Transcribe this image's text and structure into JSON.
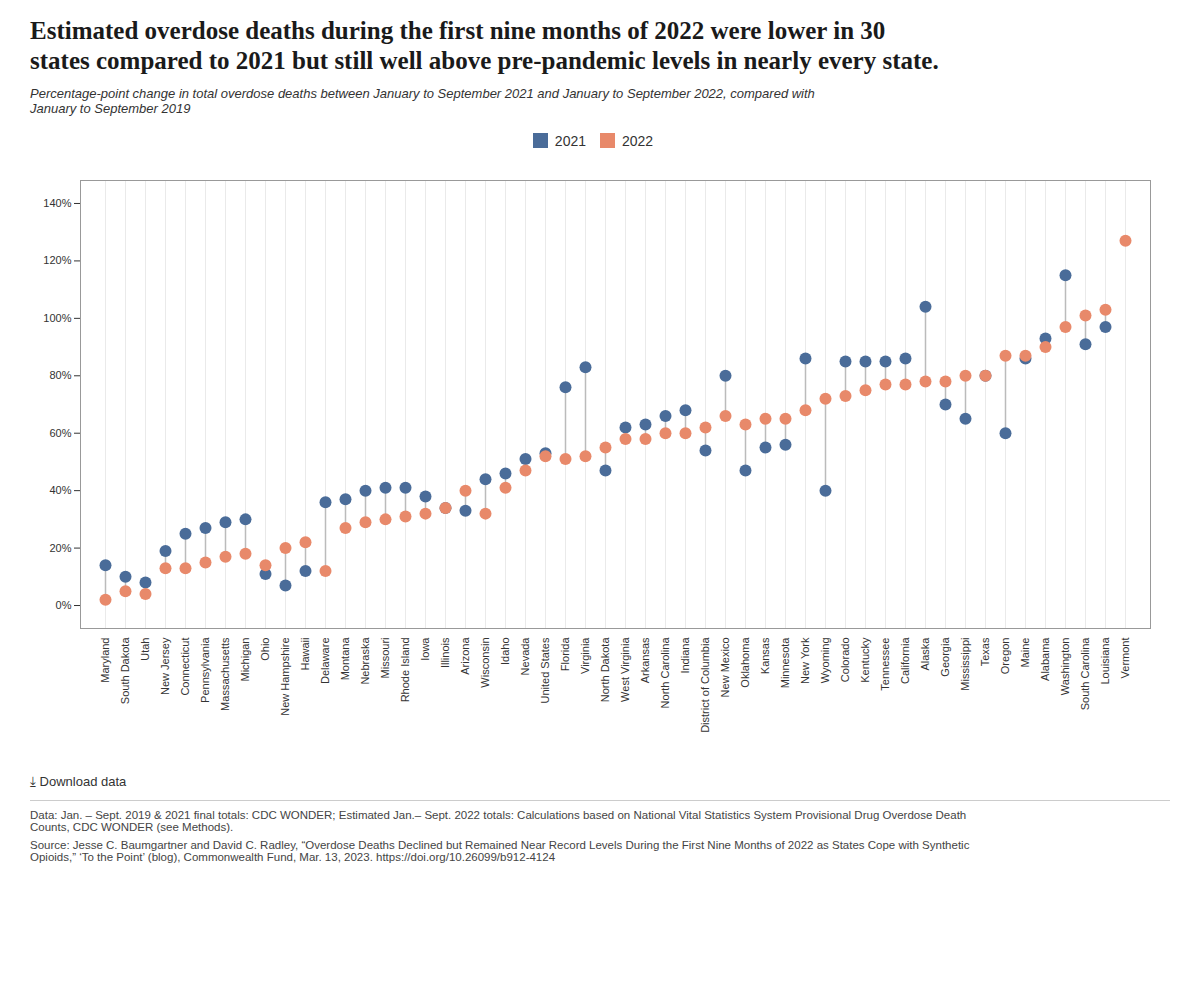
{
  "chart_data": {
    "type": "dot",
    "title": "Estimated overdose deaths during the first nine months of 2022 were lower in 30\nstates compared to 2021 but still well above pre-pandemic levels in nearly every state.",
    "subtitle": "Percentage-point change in total overdose deaths between January to September 2021 and January to September 2022, compared with\nJanuary to September 2019",
    "categories": [
      "Maryland",
      "South Dakota",
      "Utah",
      "New Jersey",
      "Connecticut",
      "Pennsylvania",
      "Massachusetts",
      "Michigan",
      "Ohio",
      "New Hampshire",
      "Hawaii",
      "Delaware",
      "Montana",
      "Nebraska",
      "Missouri",
      "Rhode Island",
      "Iowa",
      "Illinois",
      "Arizona",
      "Wisconsin",
      "Idaho",
      "Nevada",
      "United States",
      "Florida",
      "Virginia",
      "North Dakota",
      "West Virginia",
      "Arkansas",
      "North Carolina",
      "Indiana",
      "District of Columbia",
      "New Mexico",
      "Oklahoma",
      "Kansas",
      "Minnesota",
      "New York",
      "Wyoming",
      "Colorado",
      "Kentucky",
      "Tennessee",
      "California",
      "Alaska",
      "Georgia",
      "Mississippi",
      "Texas",
      "Oregon",
      "Maine",
      "Alabama",
      "Washington",
      "South Carolina",
      "Louisiana",
      "Vermont"
    ],
    "series": [
      {
        "name": "2021",
        "color": "#4a6c99",
        "values": [
          14,
          10,
          8,
          19,
          25,
          27,
          29,
          30,
          11,
          7,
          12,
          36,
          37,
          40,
          41,
          41,
          38,
          34,
          33,
          44,
          46,
          51,
          53,
          76,
          83,
          47,
          62,
          63,
          66,
          68,
          54,
          80,
          47,
          55,
          56,
          86,
          40,
          85,
          85,
          85,
          86,
          104,
          70,
          65,
          80,
          60,
          86,
          93,
          115,
          91,
          97,
          null
        ]
      },
      {
        "name": "2022",
        "color": "#e8896a",
        "values": [
          2,
          5,
          4,
          13,
          13,
          15,
          17,
          18,
          14,
          20,
          22,
          12,
          27,
          29,
          30,
          31,
          32,
          34,
          40,
          32,
          41,
          47,
          52,
          51,
          52,
          55,
          58,
          58,
          60,
          60,
          62,
          66,
          63,
          65,
          65,
          68,
          72,
          73,
          75,
          77,
          77,
          78,
          78,
          80,
          80,
          87,
          87,
          90,
          97,
          101,
          103,
          127
        ]
      }
    ],
    "ylim": [
      -8,
      148
    ],
    "yticks": [
      {
        "value": 0,
        "label": "0%"
      },
      {
        "value": 20,
        "label": "20%"
      },
      {
        "value": 40,
        "label": "40%"
      },
      {
        "value": 60,
        "label": "60%"
      },
      {
        "value": 80,
        "label": "80%"
      },
      {
        "value": 100,
        "label": "100%"
      },
      {
        "value": 120,
        "label": "120%"
      },
      {
        "value": 140,
        "label": "140%"
      }
    ],
    "grid": "x",
    "legend": "top",
    "annotations": [
      "⤓ Download data",
      "Data: Jan. – Sept. 2019 & 2021 final totals: CDC WONDER; Estimated Jan.– Sept. 2022 totals: Calculations based on National Vital Statistics System Provisional Drug Overdose Death\nCounts, CDC WONDER (see Methods).",
      "Source: Jesse C. Baumgartner and David C. Radley, “Overdose Deaths Declined but Remained Near Record Levels During the First Nine Months of 2022 as States Cope with Synthetic\nOpioids,” ‘To the Point’ (blog), Commonwealth Fund, Mar. 13, 2023. https://doi.org/10.26099/b912-4124"
    ]
  }
}
